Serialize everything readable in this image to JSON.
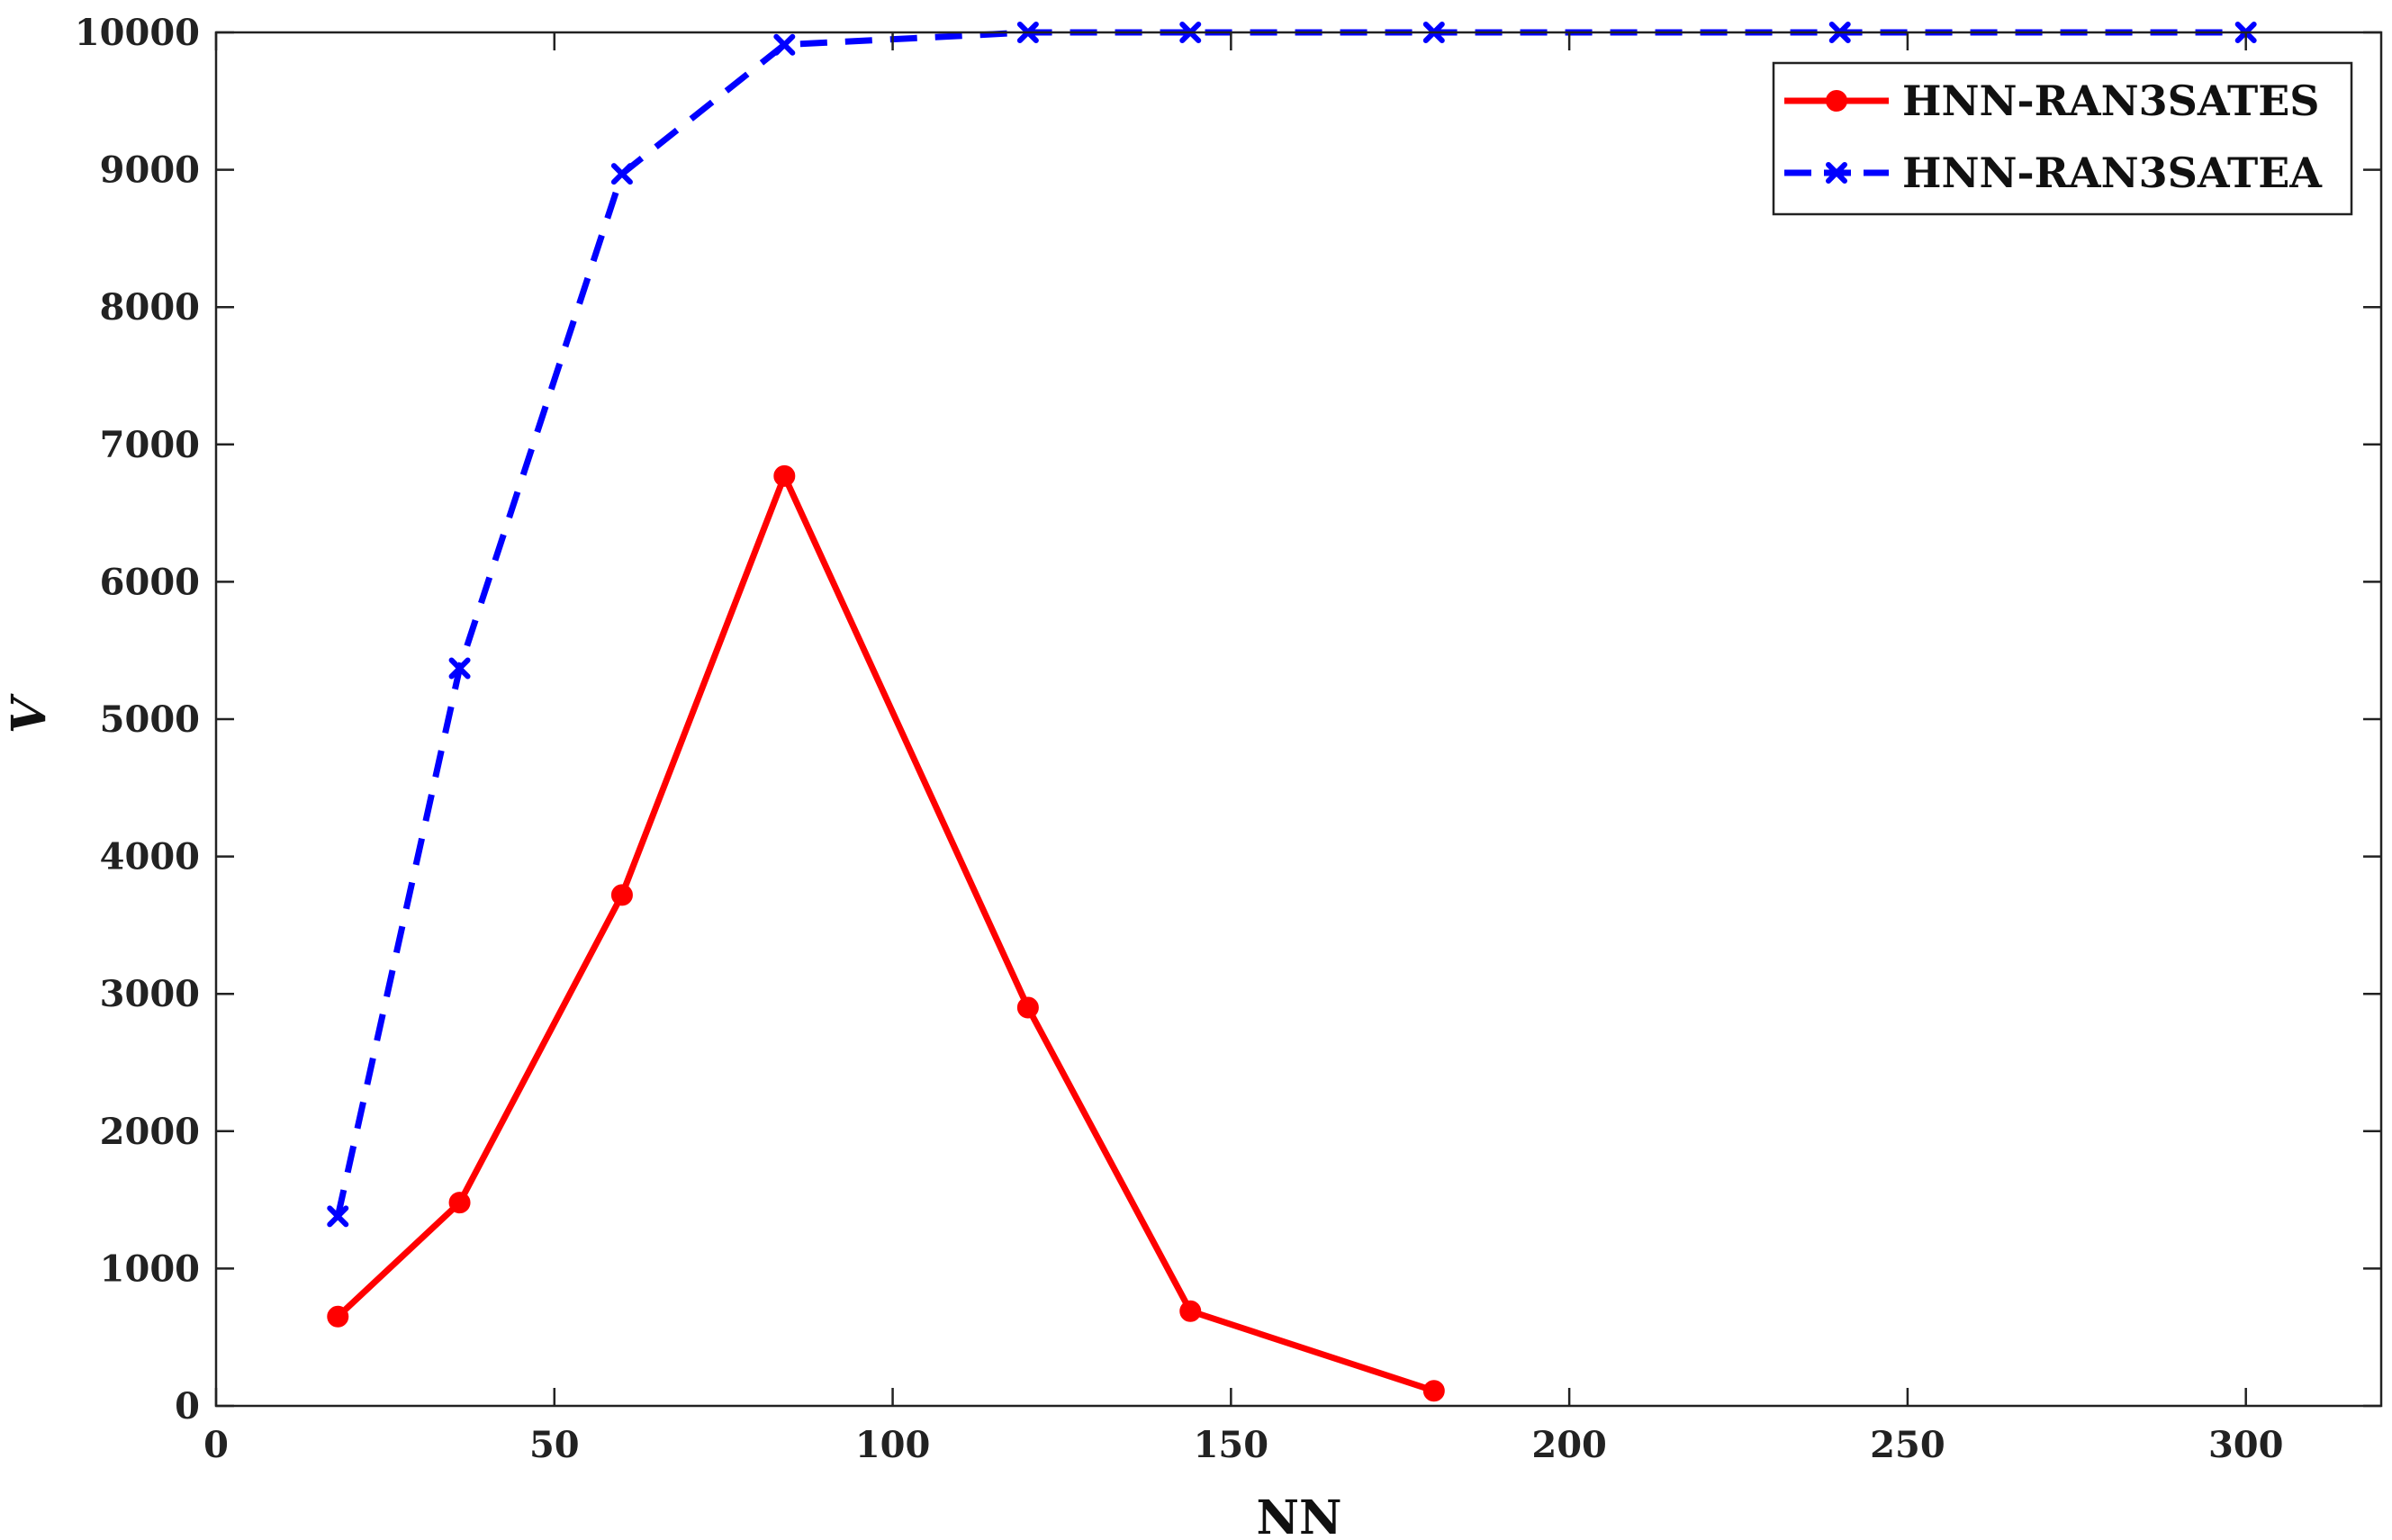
{
  "chart_data": {
    "type": "line",
    "title": "",
    "xlabel": "NN",
    "ylabel": "V",
    "xlim": [
      0,
      320
    ],
    "ylim": [
      0,
      10000
    ],
    "xticks": [
      0,
      50,
      100,
      150,
      200,
      250,
      300
    ],
    "yticks": [
      0,
      1000,
      2000,
      3000,
      4000,
      5000,
      6000,
      7000,
      8000,
      9000,
      10000
    ],
    "grid": false,
    "legend_position": "top-right",
    "series": [
      {
        "name": "HNN-RAN3SATES",
        "color": "#ff0000",
        "line_style": "solid",
        "marker": "circle",
        "x": [
          18,
          36,
          60,
          84,
          120,
          144,
          180
        ],
        "y": [
          650,
          1480,
          3720,
          6770,
          2900,
          690,
          110
        ]
      },
      {
        "name": "HNN-RAN3SATEA",
        "color": "#0000ff",
        "line_style": "dashed",
        "marker": "x",
        "x": [
          18,
          36,
          60,
          84,
          120,
          144,
          180,
          240,
          300
        ],
        "y": [
          1380,
          5370,
          8970,
          9910,
          10000,
          10000,
          10000,
          10000,
          10000
        ]
      }
    ]
  }
}
